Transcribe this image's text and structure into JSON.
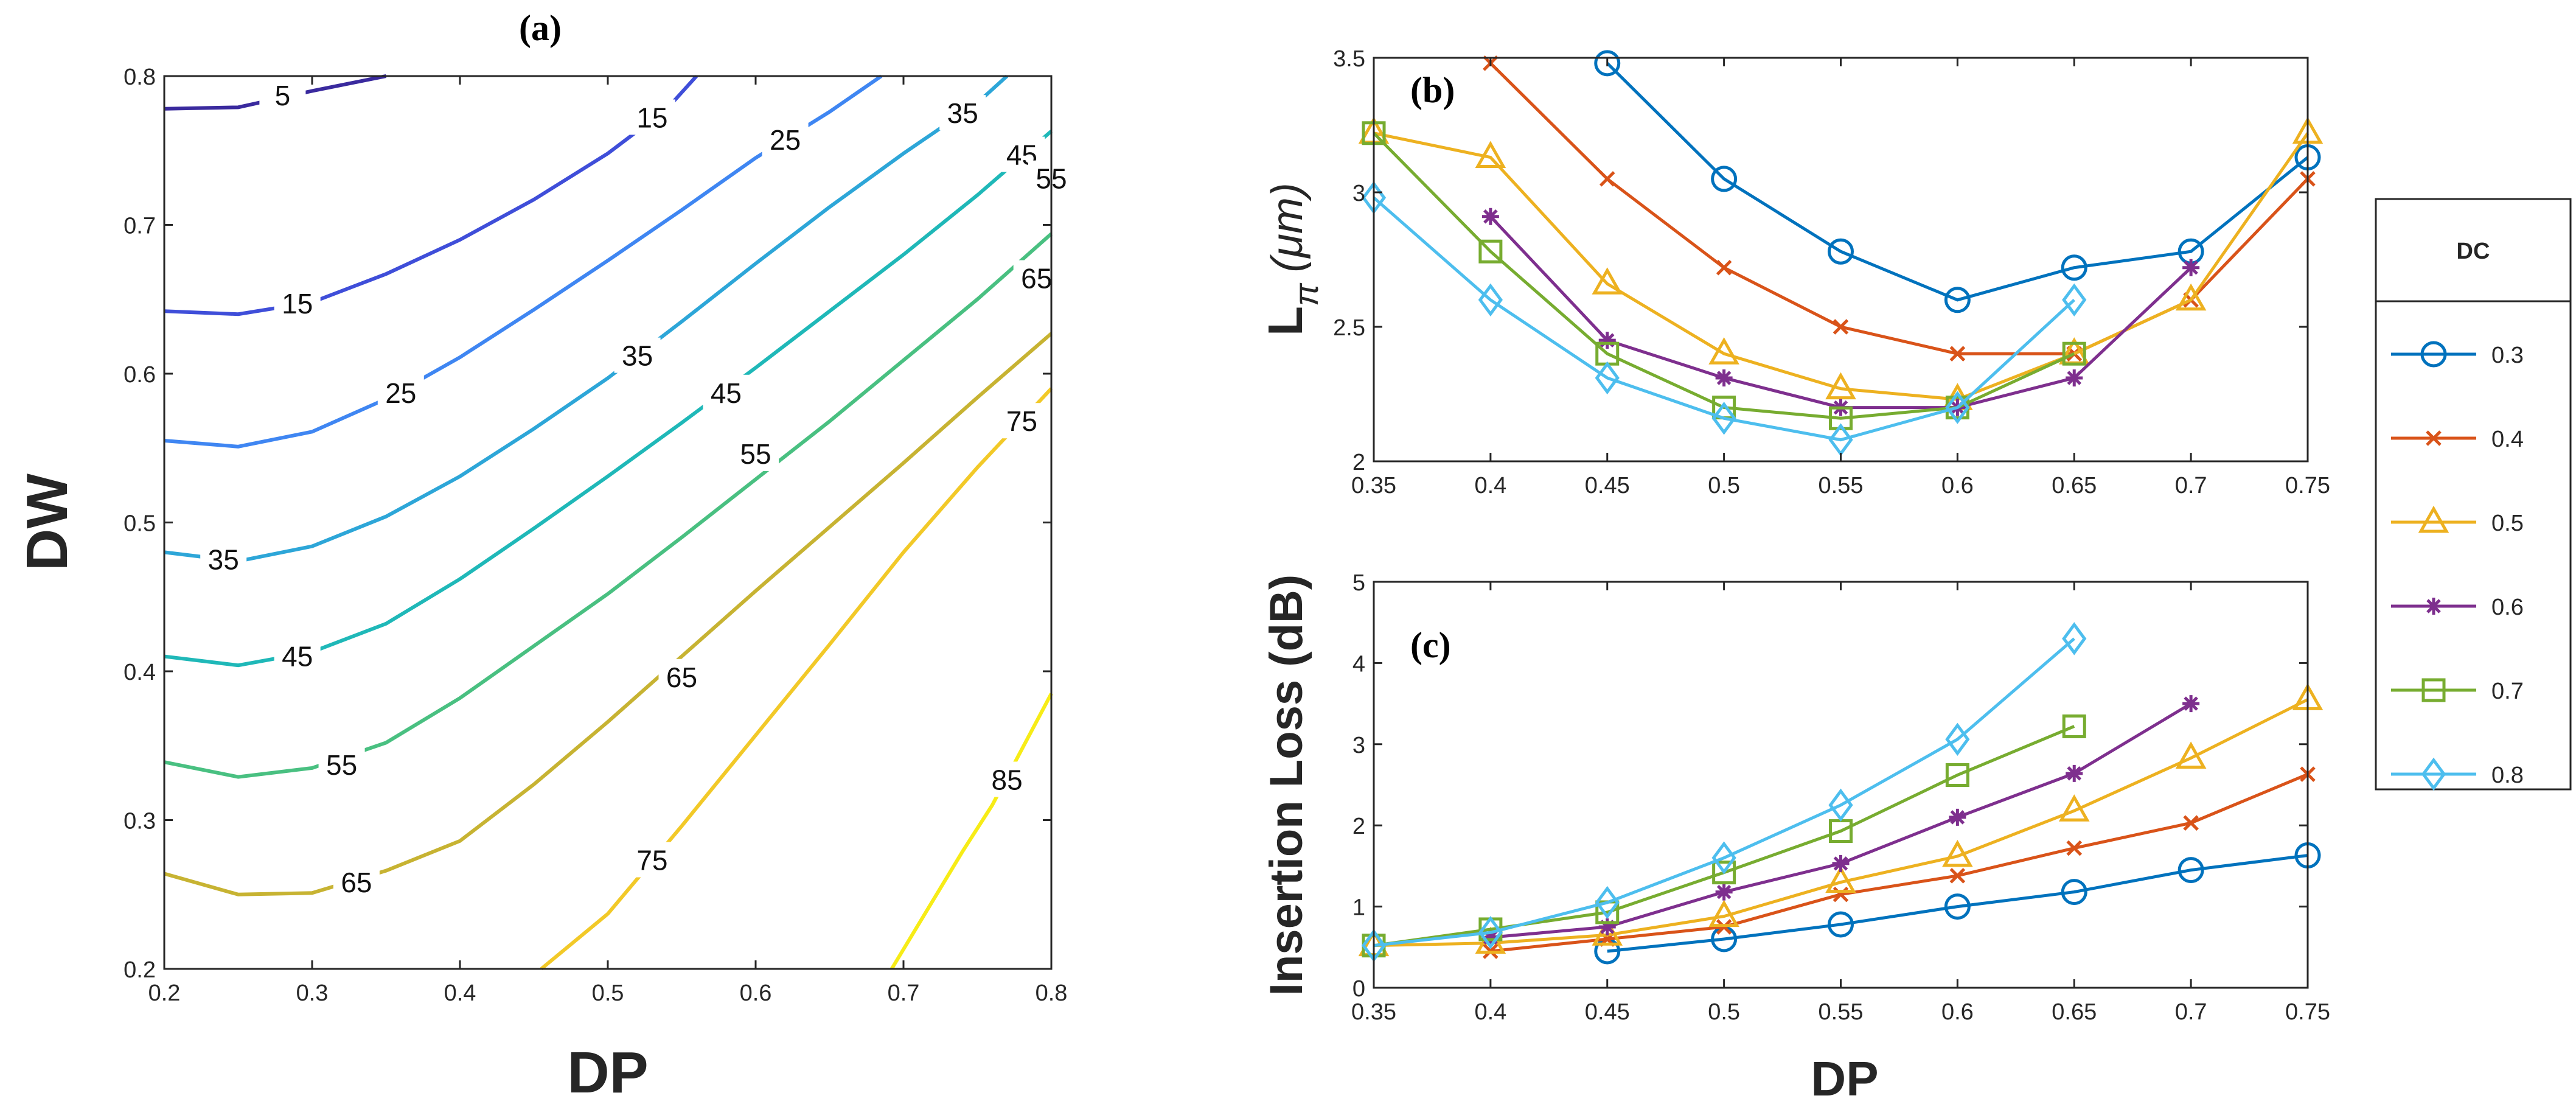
{
  "chart_data": [
    {
      "panel": "(a)",
      "type": "contour",
      "xlabel": "DP",
      "ylabel": "DW",
      "xlim": [
        0.2,
        0.8
      ],
      "ylim": [
        0.2,
        0.8
      ],
      "xticks": [
        "0.2",
        "0.3",
        "0.4",
        "0.5",
        "0.6",
        "0.7",
        "0.8"
      ],
      "yticks": [
        "0.2",
        "0.3",
        "0.4",
        "0.5",
        "0.6",
        "0.7",
        "0.8"
      ],
      "contours": [
        {
          "level": 5,
          "label": "5",
          "color": "#3a2a9e",
          "points": [
            [
              0.2,
              0.778
            ],
            [
              0.25,
              0.779
            ],
            [
              0.3,
              0.79
            ],
            [
              0.35,
              0.8
            ]
          ],
          "labels_at": [
            [
              0.28,
              0.787
            ]
          ]
        },
        {
          "level": 15,
          "label": "15",
          "color": "#3f4ed9",
          "points": [
            [
              0.2,
              0.642
            ],
            [
              0.25,
              0.64
            ],
            [
              0.3,
              0.648
            ],
            [
              0.35,
              0.667
            ],
            [
              0.4,
              0.69
            ],
            [
              0.45,
              0.717
            ],
            [
              0.5,
              0.748
            ],
            [
              0.54,
              0.778
            ],
            [
              0.56,
              0.8
            ]
          ],
          "labels_at": [
            [
              0.29,
              0.647
            ],
            [
              0.53,
              0.772
            ]
          ]
        },
        {
          "level": 25,
          "label": "25",
          "color": "#3f86f2",
          "points": [
            [
              0.2,
              0.555
            ],
            [
              0.25,
              0.551
            ],
            [
              0.3,
              0.561
            ],
            [
              0.35,
              0.583
            ],
            [
              0.4,
              0.611
            ],
            [
              0.45,
              0.643
            ],
            [
              0.5,
              0.676
            ],
            [
              0.55,
              0.71
            ],
            [
              0.6,
              0.745
            ],
            [
              0.65,
              0.776
            ],
            [
              0.685,
              0.8
            ]
          ],
          "labels_at": [
            [
              0.36,
              0.587
            ],
            [
              0.62,
              0.757
            ]
          ]
        },
        {
          "level": 35,
          "label": "35",
          "color": "#2da6d8",
          "points": [
            [
              0.2,
              0.48
            ],
            [
              0.25,
              0.474
            ],
            [
              0.3,
              0.484
            ],
            [
              0.35,
              0.504
            ],
            [
              0.4,
              0.531
            ],
            [
              0.45,
              0.563
            ],
            [
              0.5,
              0.597
            ],
            [
              0.55,
              0.635
            ],
            [
              0.6,
              0.674
            ],
            [
              0.65,
              0.712
            ],
            [
              0.7,
              0.748
            ],
            [
              0.75,
              0.782
            ],
            [
              0.77,
              0.8
            ]
          ],
          "labels_at": [
            [
              0.24,
              0.475
            ],
            [
              0.52,
              0.612
            ],
            [
              0.74,
              0.775
            ]
          ]
        },
        {
          "level": 45,
          "label": "45",
          "color": "#1fb8b8",
          "points": [
            [
              0.2,
              0.41
            ],
            [
              0.25,
              0.404
            ],
            [
              0.3,
              0.413
            ],
            [
              0.35,
              0.432
            ],
            [
              0.4,
              0.462
            ],
            [
              0.45,
              0.496
            ],
            [
              0.5,
              0.531
            ],
            [
              0.55,
              0.567
            ],
            [
              0.6,
              0.604
            ],
            [
              0.65,
              0.642
            ],
            [
              0.7,
              0.68
            ],
            [
              0.75,
              0.72
            ],
            [
              0.8,
              0.763
            ]
          ],
          "labels_at": [
            [
              0.29,
              0.41
            ],
            [
              0.58,
              0.587
            ],
            [
              0.78,
              0.747
            ]
          ]
        },
        {
          "level": 55,
          "label": "55",
          "color": "#49c081",
          "points": [
            [
              0.2,
              0.339
            ],
            [
              0.25,
              0.329
            ],
            [
              0.3,
              0.335
            ],
            [
              0.35,
              0.352
            ],
            [
              0.4,
              0.382
            ],
            [
              0.45,
              0.417
            ],
            [
              0.5,
              0.452
            ],
            [
              0.55,
              0.49
            ],
            [
              0.6,
              0.529
            ],
            [
              0.65,
              0.568
            ],
            [
              0.7,
              0.609
            ],
            [
              0.75,
              0.65
            ],
            [
              0.8,
              0.694
            ]
          ],
          "labels_at": [
            [
              0.32,
              0.337
            ],
            [
              0.6,
              0.546
            ],
            [
              0.8,
              0.731
            ]
          ]
        },
        {
          "level": 65,
          "label": "65",
          "color": "#c7b332",
          "points": [
            [
              0.2,
              0.264
            ],
            [
              0.25,
              0.25
            ],
            [
              0.3,
              0.251
            ],
            [
              0.35,
              0.266
            ],
            [
              0.4,
              0.286
            ],
            [
              0.45,
              0.324
            ],
            [
              0.5,
              0.366
            ],
            [
              0.55,
              0.41
            ],
            [
              0.6,
              0.454
            ],
            [
              0.65,
              0.497
            ],
            [
              0.7,
              0.54
            ],
            [
              0.75,
              0.584
            ],
            [
              0.8,
              0.627
            ]
          ],
          "labels_at": [
            [
              0.33,
              0.258
            ],
            [
              0.55,
              0.396
            ],
            [
              0.79,
              0.664
            ]
          ]
        },
        {
          "level": 75,
          "label": "75",
          "color": "#f2c928",
          "points": [
            [
              0.455,
              0.2
            ],
            [
              0.5,
              0.237
            ],
            [
              0.55,
              0.296
            ],
            [
              0.6,
              0.357
            ],
            [
              0.65,
              0.418
            ],
            [
              0.7,
              0.48
            ],
            [
              0.75,
              0.537
            ],
            [
              0.8,
              0.59
            ]
          ],
          "labels_at": [
            [
              0.53,
              0.273
            ],
            [
              0.78,
              0.568
            ]
          ]
        },
        {
          "level": 85,
          "label": "85",
          "color": "#f7ec17",
          "points": [
            [
              0.692,
              0.2
            ],
            [
              0.74,
              0.279
            ],
            [
              0.76,
              0.31
            ],
            [
              0.8,
              0.385
            ]
          ],
          "labels_at": [
            [
              0.77,
              0.327
            ]
          ]
        }
      ]
    },
    {
      "panel": "(b)",
      "type": "line",
      "xlabel": "",
      "ylabel": "L",
      "ylabel_sub": "π",
      "ylabel_unit": "(μm)",
      "xlim": [
        0.35,
        0.75
      ],
      "ylim": [
        2,
        3.5
      ],
      "xticks": [
        "0.35",
        "0.4",
        "0.45",
        "0.5",
        "0.55",
        "0.6",
        "0.65",
        "0.7",
        "0.75"
      ],
      "yticks": [
        "2",
        "2.5",
        "3",
        "3.5"
      ],
      "series": [
        {
          "name": "0.3",
          "color": "#0072bd",
          "marker": "circle",
          "x": [
            0.45,
            0.5,
            0.55,
            0.6,
            0.65,
            0.7,
            0.75
          ],
          "y": [
            3.48,
            3.05,
            2.78,
            2.6,
            2.72,
            2.78,
            3.13
          ]
        },
        {
          "name": "0.4",
          "color": "#d95319",
          "marker": "x",
          "x": [
            0.4,
            0.45,
            0.5,
            0.55,
            0.6,
            0.65,
            0.7,
            0.75
          ],
          "y": [
            3.48,
            3.05,
            2.72,
            2.5,
            2.4,
            2.4,
            2.6,
            3.05
          ]
        },
        {
          "name": "0.5",
          "color": "#edb120",
          "marker": "triangle",
          "x": [
            0.35,
            0.4,
            0.45,
            0.5,
            0.55,
            0.6,
            0.65,
            0.7,
            0.75
          ],
          "y": [
            3.22,
            3.13,
            2.66,
            2.4,
            2.27,
            2.23,
            2.4,
            2.6,
            3.22
          ]
        },
        {
          "name": "0.6",
          "color": "#7e2f8e",
          "marker": "star",
          "x": [
            0.4,
            0.45,
            0.5,
            0.55,
            0.6,
            0.65,
            0.7
          ],
          "y": [
            2.91,
            2.45,
            2.31,
            2.2,
            2.2,
            2.31,
            2.72
          ]
        },
        {
          "name": "0.7",
          "color": "#77ac30",
          "marker": "square",
          "x": [
            0.35,
            0.4,
            0.45,
            0.5,
            0.55,
            0.6,
            0.65
          ],
          "y": [
            3.22,
            2.78,
            2.4,
            2.2,
            2.16,
            2.2,
            2.4
          ]
        },
        {
          "name": "0.8",
          "color": "#4dbeee",
          "marker": "diamond",
          "x": [
            0.35,
            0.4,
            0.45,
            0.5,
            0.55,
            0.6,
            0.65
          ],
          "y": [
            2.98,
            2.6,
            2.31,
            2.16,
            2.08,
            2.2,
            2.6
          ]
        }
      ]
    },
    {
      "panel": "(c)",
      "type": "line",
      "xlabel": "DP",
      "ylabel": "Insertion Loss (dB)",
      "xlim": [
        0.35,
        0.75
      ],
      "ylim": [
        0,
        5
      ],
      "xticks": [
        "0.35",
        "0.4",
        "0.45",
        "0.5",
        "0.55",
        "0.6",
        "0.65",
        "0.7",
        "0.75"
      ],
      "yticks": [
        "0",
        "1",
        "2",
        "3",
        "4",
        "5"
      ],
      "series": [
        {
          "name": "0.3",
          "color": "#0072bd",
          "marker": "circle",
          "x": [
            0.45,
            0.5,
            0.55,
            0.6,
            0.65,
            0.7,
            0.75
          ],
          "y": [
            0.45,
            0.6,
            0.78,
            1.0,
            1.18,
            1.45,
            1.63
          ]
        },
        {
          "name": "0.4",
          "color": "#d95319",
          "marker": "x",
          "x": [
            0.4,
            0.45,
            0.5,
            0.55,
            0.6,
            0.65,
            0.7,
            0.75
          ],
          "y": [
            0.45,
            0.6,
            0.75,
            1.15,
            1.38,
            1.72,
            2.03,
            2.63
          ]
        },
        {
          "name": "0.5",
          "color": "#edb120",
          "marker": "triangle",
          "x": [
            0.35,
            0.4,
            0.45,
            0.5,
            0.55,
            0.6,
            0.65,
            0.7,
            0.75
          ],
          "y": [
            0.52,
            0.55,
            0.65,
            0.88,
            1.3,
            1.62,
            2.18,
            2.83,
            3.55
          ]
        },
        {
          "name": "0.6",
          "color": "#7e2f8e",
          "marker": "star",
          "x": [
            0.4,
            0.45,
            0.5,
            0.55,
            0.6,
            0.65,
            0.7
          ],
          "y": [
            0.62,
            0.75,
            1.18,
            1.53,
            2.1,
            2.64,
            3.5
          ]
        },
        {
          "name": "0.7",
          "color": "#77ac30",
          "marker": "square",
          "x": [
            0.35,
            0.4,
            0.45,
            0.5,
            0.55,
            0.6,
            0.65
          ],
          "y": [
            0.52,
            0.72,
            0.93,
            1.42,
            1.93,
            2.62,
            3.22
          ]
        },
        {
          "name": "0.8",
          "color": "#4dbeee",
          "marker": "diamond",
          "x": [
            0.35,
            0.4,
            0.45,
            0.5,
            0.55,
            0.6,
            0.65
          ],
          "y": [
            0.52,
            0.68,
            1.05,
            1.6,
            2.25,
            3.06,
            4.3
          ]
        }
      ]
    }
  ],
  "legend": {
    "title": "DC",
    "placement": "right",
    "entries": [
      "0.3",
      "0.4",
      "0.5",
      "0.6",
      "0.7",
      "0.8"
    ]
  }
}
